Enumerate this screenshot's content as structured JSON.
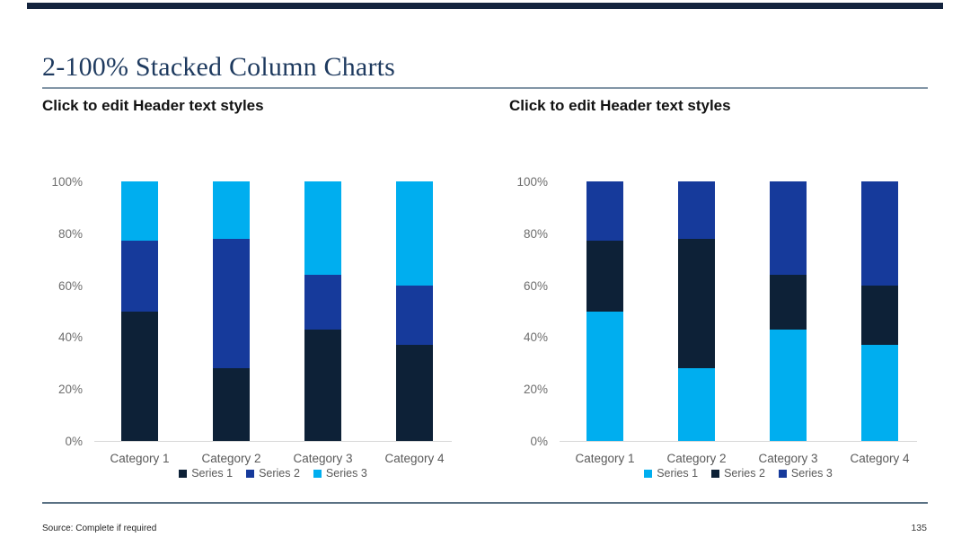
{
  "slide": {
    "title": "2-100% Stacked Column Charts",
    "source_note": "Source: Complete if required",
    "page_number": "135",
    "accent_bar_color": "#14243E",
    "title_color": "#1E3A5F",
    "title_rule_color": "#8295A6",
    "footer_rule_color": "#5A7184"
  },
  "headers": [
    {
      "label": "Click to edit Header text styles"
    },
    {
      "label": "Click to edit Header text styles"
    }
  ],
  "chart_data": [
    {
      "type": "bar",
      "stacked": true,
      "units": "percent",
      "title": "",
      "xlabel": "",
      "ylabel": "",
      "categories": [
        "Category 1",
        "Category 2",
        "Category 3",
        "Category 4"
      ],
      "series": [
        {
          "name": "Series 1",
          "color": "#0D2137",
          "values": [
            50,
            28,
            43,
            37
          ]
        },
        {
          "name": "Series 2",
          "color": "#163A9B",
          "values": [
            27,
            50,
            21,
            23
          ]
        },
        {
          "name": "Series 3",
          "color": "#00AEEF",
          "values": [
            23,
            22,
            36,
            40
          ]
        }
      ],
      "yticks": [
        "0%",
        "20%",
        "40%",
        "60%",
        "80%",
        "100%"
      ],
      "ylim": [
        0,
        100
      ],
      "grid": false,
      "legend_position": "bottom"
    },
    {
      "type": "bar",
      "stacked": true,
      "units": "percent",
      "title": "",
      "xlabel": "",
      "ylabel": "",
      "categories": [
        "Category 1",
        "Category 2",
        "Category 3",
        "Category 4"
      ],
      "series": [
        {
          "name": "Series 1",
          "color": "#00AEEF",
          "values": [
            50,
            28,
            43,
            37
          ]
        },
        {
          "name": "Series 2",
          "color": "#0D2137",
          "values": [
            27,
            50,
            21,
            23
          ]
        },
        {
          "name": "Series 3",
          "color": "#163A9B",
          "values": [
            23,
            22,
            36,
            40
          ]
        }
      ],
      "yticks": [
        "0%",
        "20%",
        "40%",
        "60%",
        "80%",
        "100%"
      ],
      "ylim": [
        0,
        100
      ],
      "grid": false,
      "legend_position": "bottom"
    }
  ]
}
